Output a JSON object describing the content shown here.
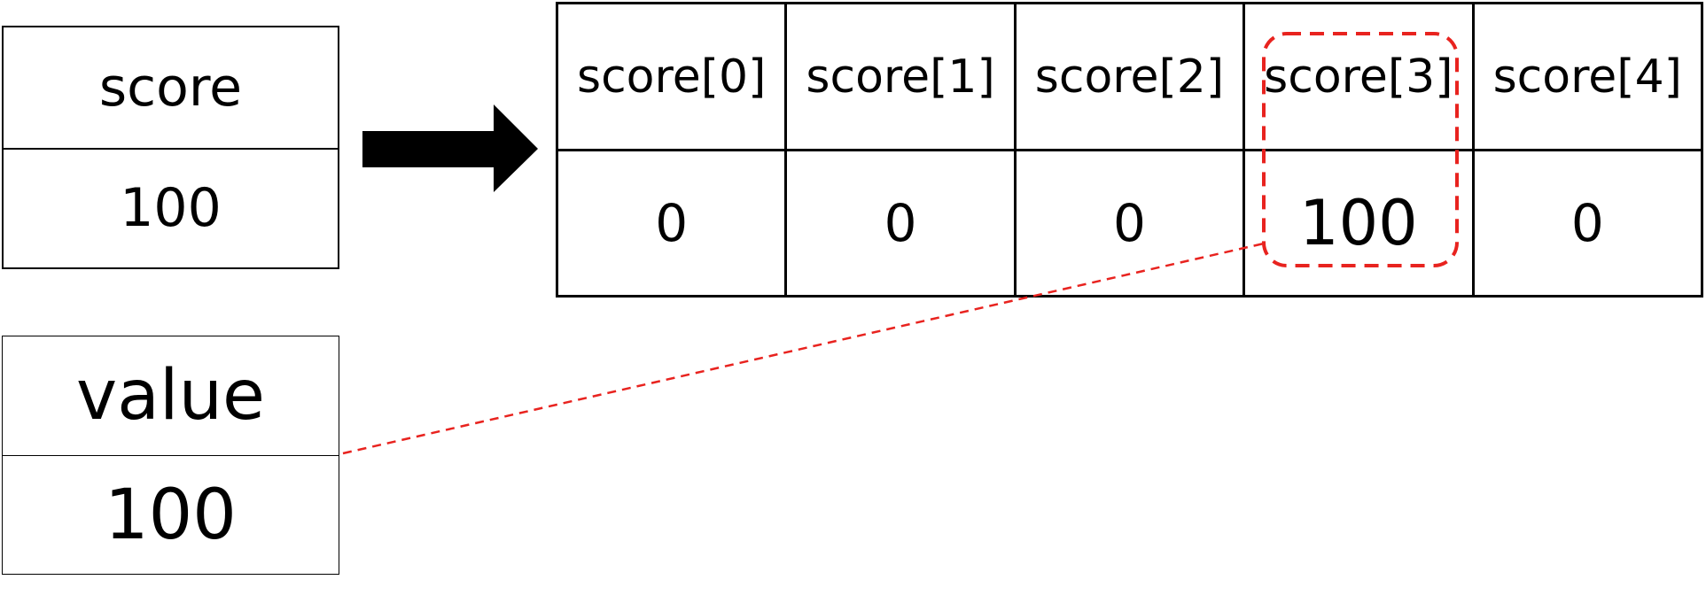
{
  "variables": {
    "score": {
      "name": "score",
      "value": "100"
    },
    "value": {
      "name": "value",
      "value": "100"
    }
  },
  "array": {
    "headers": [
      "score[0]",
      "score[1]",
      "score[2]",
      "score[3]",
      "score[4]"
    ],
    "values": [
      "0",
      "0",
      "0",
      "100",
      "0"
    ],
    "highlight_index": 3
  },
  "colors": {
    "highlight": "#e8231f",
    "stroke": "#000000",
    "arrow": "#000000"
  },
  "icons": {
    "arrow": "right-arrow-icon"
  }
}
